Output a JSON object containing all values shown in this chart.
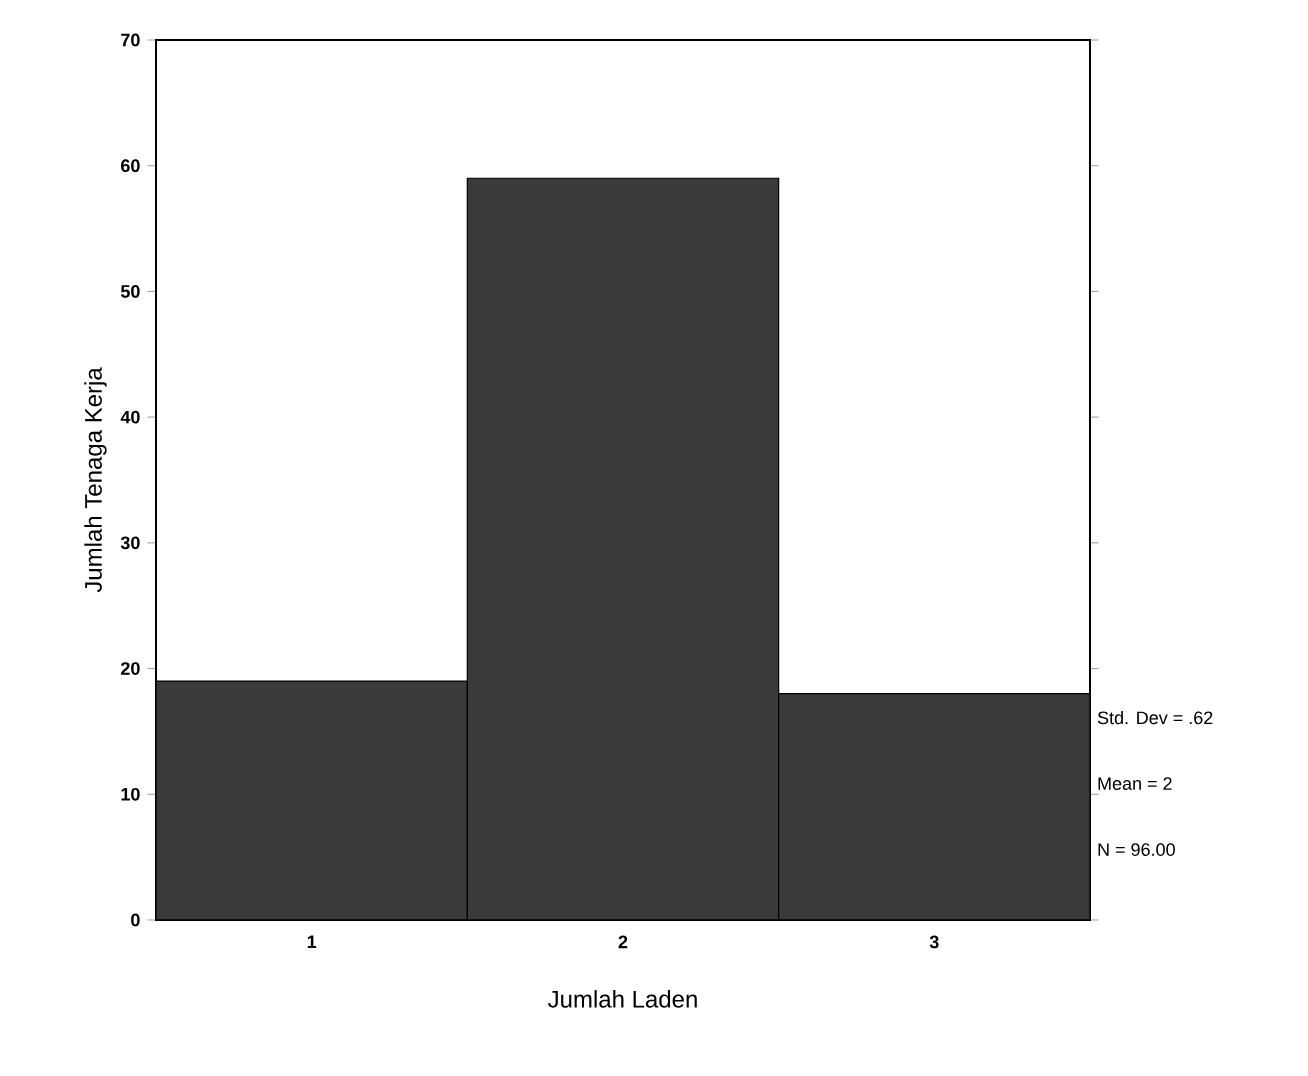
{
  "chart_data": {
    "type": "histogram",
    "xlabel": "Jumlah Laden",
    "ylabel": "Jumlah Tenaga Kerja",
    "bins": [
      0.5,
      1.5,
      2.5,
      3.5
    ],
    "values": [
      19,
      59,
      18
    ],
    "color": "#3a3a3a",
    "xlim": [
      0.5,
      3.5
    ],
    "xticks": [
      1,
      2,
      3
    ],
    "ylim": [
      0,
      70
    ],
    "yticks": [
      0,
      10,
      20,
      30,
      40,
      50,
      60,
      70
    ],
    "grid": false,
    "annotations": [
      "Std. Dev = .62",
      "Mean = 2",
      "N = 96.00"
    ]
  }
}
